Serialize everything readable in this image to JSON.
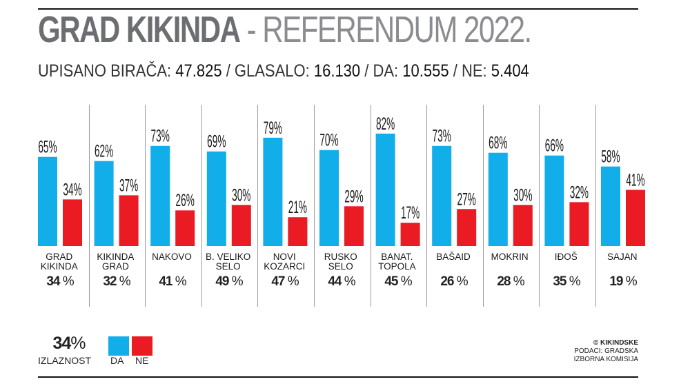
{
  "header": {
    "title_place": "GRAD KIKINDA",
    "title_sep": "-",
    "title_event": "REFERENDUM 2022.",
    "stats": [
      {
        "label": "UPISANO BIRAČA:",
        "value": "47.825"
      },
      {
        "label": "/ GLASALO:",
        "value": "16.130"
      },
      {
        "label": "/ DA:",
        "value": "10.555"
      },
      {
        "label": "/ NE:",
        "value": "5.404"
      }
    ]
  },
  "legend": {
    "turnout_value": "34",
    "turnout_unit": "%",
    "turnout_label": "IZLAZNOST",
    "da_label": "DA",
    "ne_label": "NE"
  },
  "credit": {
    "brand": "© KIKINDSKE",
    "line1": "PODACI: GRADSKA",
    "line2": "IZBORNA KOMISIJA"
  },
  "colors": {
    "da": "#12aee9",
    "ne": "#ea1b23",
    "divider": "#9a9a9a"
  },
  "chart_data": {
    "type": "bar",
    "value_unit": "%",
    "categories": [
      [
        "GRAD",
        "KIKINDA"
      ],
      [
        "KIKINDA",
        "GRAD"
      ],
      [
        "NAKOVO"
      ],
      [
        "B. VELIKO",
        "SELO"
      ],
      [
        "NOVI",
        "KOZARCI"
      ],
      [
        "RUSKO",
        "SELO"
      ],
      [
        "BANAT.",
        "TOPOLA"
      ],
      [
        "BAŠAID"
      ],
      [
        "MOKRIN"
      ],
      [
        "IĐOŠ"
      ],
      [
        "SAJAN"
      ]
    ],
    "series": [
      {
        "name": "DA",
        "color": "#12aee9",
        "values": [
          65,
          62,
          73,
          69,
          79,
          70,
          82,
          73,
          68,
          66,
          58
        ]
      },
      {
        "name": "NE",
        "color": "#ea1b23",
        "values": [
          34,
          37,
          26,
          30,
          21,
          29,
          17,
          27,
          30,
          32,
          41
        ]
      }
    ],
    "turnout": [
      34,
      32,
      41,
      49,
      47,
      44,
      45,
      26,
      28,
      35,
      19
    ],
    "ylim": [
      0,
      100
    ],
    "grid": false,
    "legend_position": "bottom-left"
  }
}
